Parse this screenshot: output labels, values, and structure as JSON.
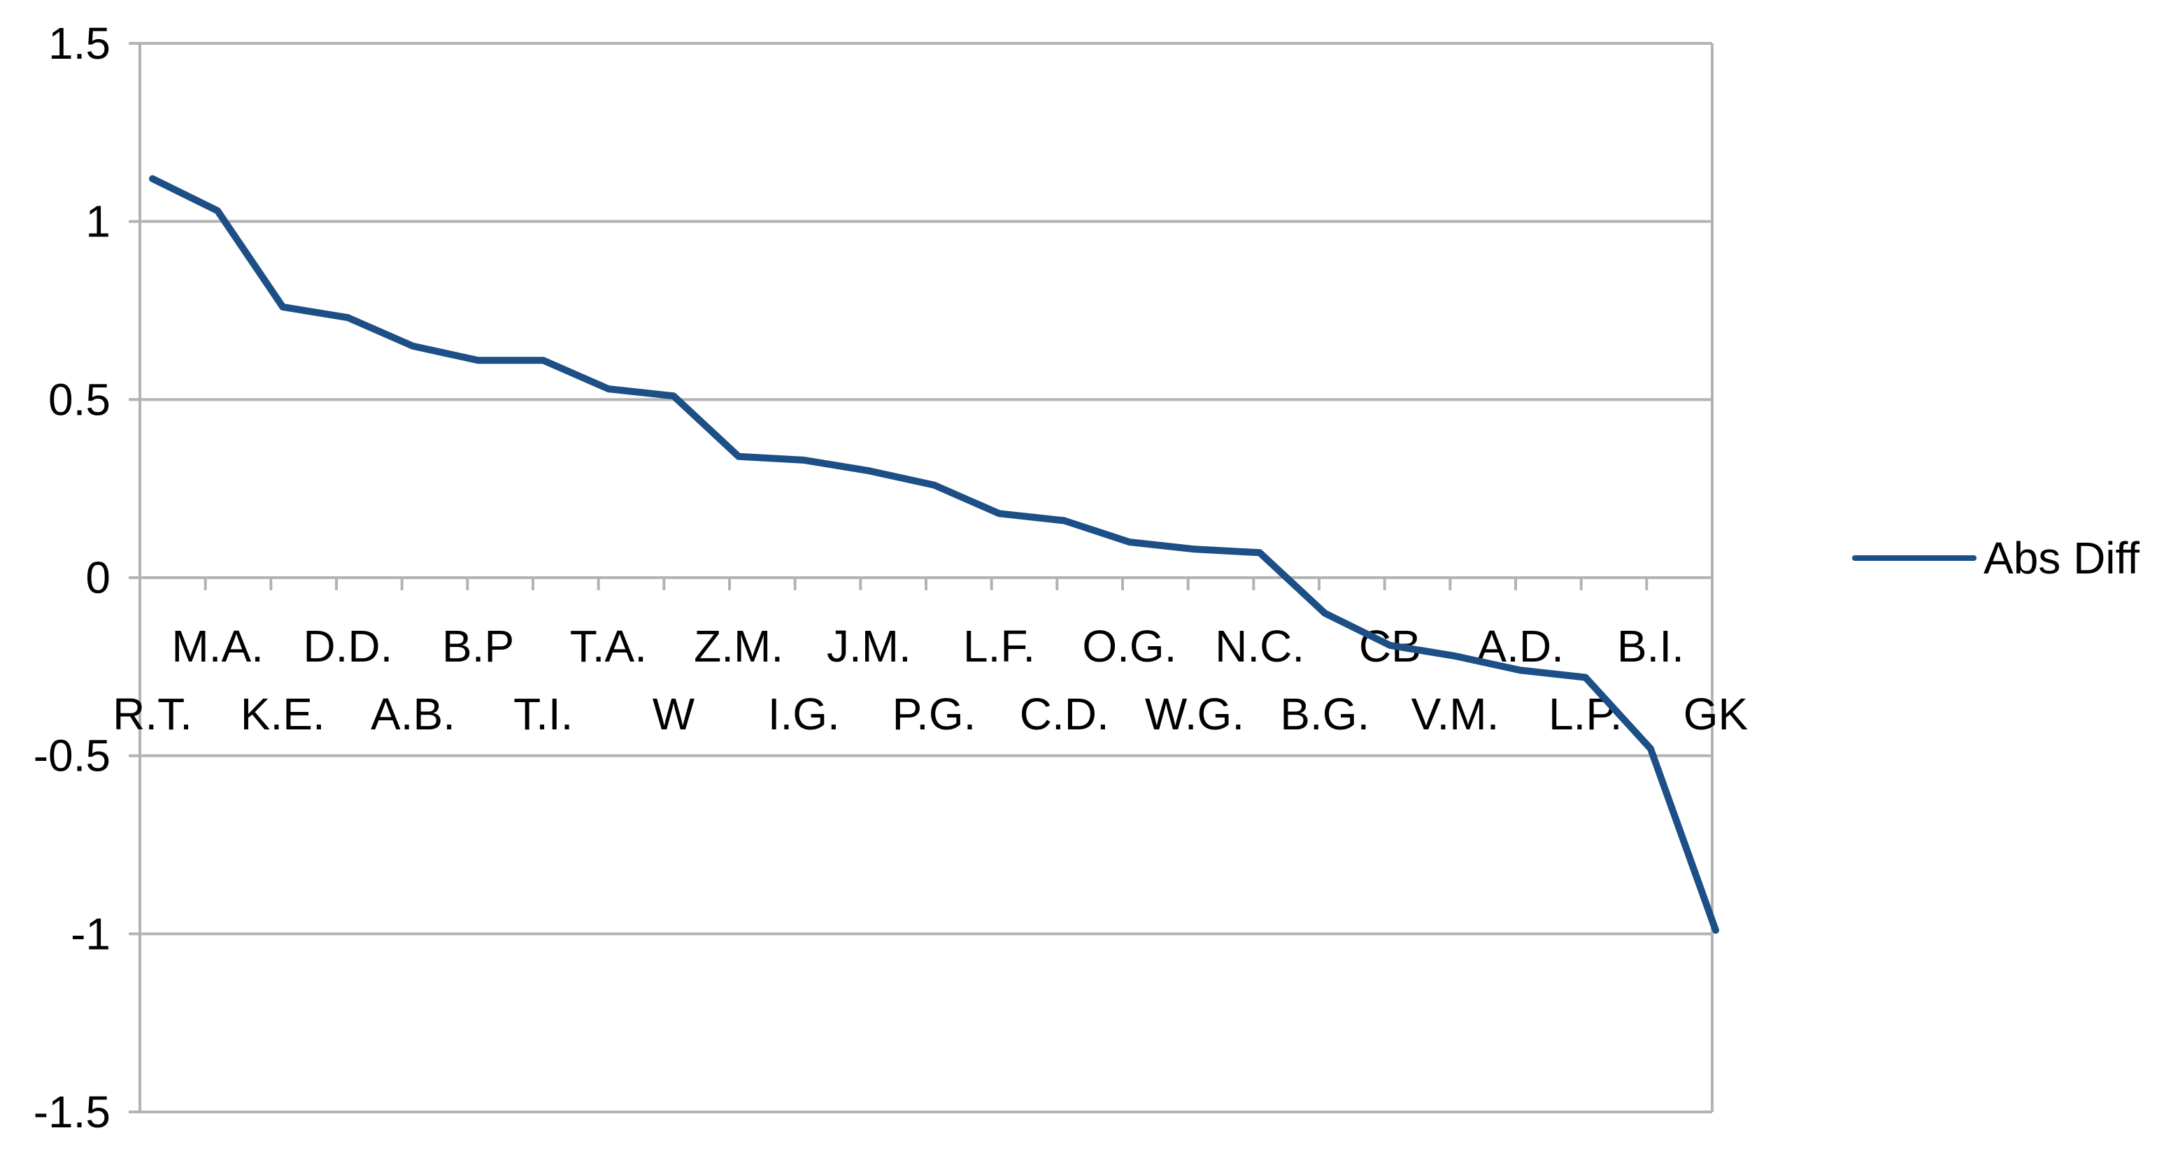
{
  "chart_data": {
    "type": "line",
    "categories": [
      "R.T.",
      "M.A.",
      "K.E.",
      "D.D.",
      "A.B.",
      "B.P",
      "T.I.",
      "T.A.",
      "W",
      "Z.M.",
      "I.G.",
      "J.M.",
      "P.G.",
      "L.F.",
      "C.D.",
      "O.G.",
      "W.G.",
      "N.C.",
      "B.G.",
      "CB",
      "V.M.",
      "A.D.",
      "L.P.",
      "B.I.",
      "GK"
    ],
    "series": [
      {
        "name": "Abs Diff",
        "values": [
          1.12,
          1.03,
          0.76,
          0.73,
          0.65,
          0.61,
          0.61,
          0.53,
          0.51,
          0.34,
          0.33,
          0.3,
          0.26,
          0.18,
          0.16,
          0.1,
          0.08,
          0.07,
          -0.1,
          -0.19,
          -0.22,
          -0.26,
          -0.28,
          -0.48,
          -0.99
        ]
      }
    ],
    "ylim": [
      -1.5,
      1.5
    ],
    "yticks": [
      -1.5,
      -1,
      -0.5,
      0,
      0.5,
      1,
      1.5
    ],
    "ytick_labels": [
      "-1.5",
      "-1",
      "-0.5",
      "0",
      "0.5",
      "1",
      "1.5"
    ],
    "grid": true,
    "legend_position": "right",
    "colors": {
      "series": "#1c4f85",
      "grid": "#b3b3b3",
      "axis": "#b3b3b3"
    }
  }
}
